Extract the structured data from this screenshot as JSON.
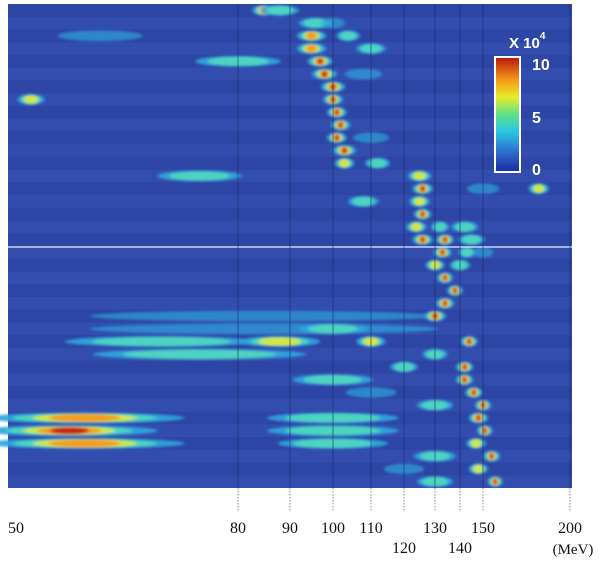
{
  "chart_data": {
    "type": "heatmap",
    "x_axis_ticks": [
      50,
      80,
      90,
      100,
      110,
      120,
      130,
      140,
      150,
      200
    ],
    "x_unit": "(MeV)",
    "colorbar": {
      "multiplier": "X 10",
      "exponent": "4",
      "ticks": [
        "10",
        "5",
        "0"
      ],
      "tick_values": [
        10,
        5,
        0
      ],
      "range": [
        0,
        11
      ],
      "colormap": "jet"
    },
    "rows": [
      {
        "segments": [
          [
            85,
            3,
            1.0
          ],
          [
            88,
            6,
            0.35
          ]
        ]
      },
      {
        "segments": [
          [
            96,
            6,
            0.3
          ],
          [
            100,
            4,
            0.25
          ]
        ]
      },
      {
        "segments": [
          [
            62,
            10,
            0.25
          ],
          [
            95,
            5,
            0.7
          ],
          [
            104,
            4,
            0.4
          ]
        ]
      },
      {
        "segments": [
          [
            95,
            5,
            0.75
          ],
          [
            110,
            6,
            0.3
          ]
        ]
      },
      {
        "segments": [
          [
            80,
            12,
            0.3
          ],
          [
            97,
            4,
            0.95
          ]
        ]
      },
      {
        "segments": [
          [
            98,
            4,
            1.0
          ],
          [
            108,
            8,
            0.25
          ]
        ]
      },
      {
        "segments": [
          [
            100,
            4,
            0.8
          ]
        ]
      },
      {
        "segments": [
          [
            53,
            2.5,
            0.55
          ],
          [
            100,
            3,
            0.85
          ]
        ]
      },
      {
        "segments": [
          [
            101,
            3,
            1.0
          ]
        ]
      },
      {
        "segments": [
          [
            102,
            3,
            0.8
          ]
        ]
      },
      {
        "segments": [
          [
            101,
            3,
            0.9
          ],
          [
            110,
            8,
            0.25
          ]
        ]
      },
      {
        "segments": [
          [
            103,
            4,
            1.0
          ]
        ]
      },
      {
        "segments": [
          [
            103,
            3,
            0.6
          ],
          [
            112,
            5,
            0.35
          ]
        ]
      },
      {
        "segments": [
          [
            75,
            10,
            0.3
          ],
          [
            125,
            5,
            0.55
          ]
        ]
      },
      {
        "segments": [
          [
            126,
            4,
            1.0
          ],
          [
            182,
            7,
            0.55
          ],
          [
            150,
            12,
            0.2
          ]
        ]
      },
      {
        "segments": [
          [
            125,
            4,
            0.6
          ],
          [
            108,
            6,
            0.3
          ]
        ]
      },
      {
        "segments": [
          [
            126,
            3,
            1.0
          ]
        ]
      },
      {
        "segments": [
          [
            124,
            4,
            0.55
          ],
          [
            132,
            4,
            0.45
          ],
          [
            142,
            8,
            0.3
          ]
        ]
      },
      {
        "segments": [
          [
            126,
            4,
            1.0
          ],
          [
            134,
            4,
            0.85
          ],
          [
            145,
            8,
            0.4
          ]
        ]
      },
      {
        "segments": [
          [
            133,
            4,
            1.0
          ],
          [
            143,
            4,
            0.45
          ],
          [
            150,
            6,
            0.25
          ]
        ]
      },
      {
        "segments": [
          [
            130,
            4,
            0.5
          ],
          [
            140,
            5,
            0.3
          ]
        ]
      },
      {
        "segments": [
          [
            134,
            3,
            1.0
          ]
        ]
      },
      {
        "segments": [
          [
            138,
            3,
            1.0
          ]
        ]
      },
      {
        "segments": [
          [
            134,
            4,
            1.0
          ]
        ]
      },
      {
        "segments": [
          [
            85,
            60,
            0.2
          ],
          [
            130,
            5,
            0.85
          ]
        ]
      },
      {
        "segments": [
          [
            85,
            60,
            0.22
          ],
          [
            100,
            15,
            0.3
          ]
        ]
      },
      {
        "segments": [
          [
            70,
            25,
            0.45
          ],
          [
            88,
            15,
            0.5
          ],
          [
            144,
            4,
            1.0
          ],
          [
            110,
            6,
            0.5
          ]
        ]
      },
      {
        "segments": [
          [
            75,
            30,
            0.3
          ],
          [
            130,
            6,
            0.3
          ]
        ]
      },
      {
        "segments": [
          [
            142,
            4,
            0.95
          ],
          [
            120,
            6,
            0.3
          ]
        ]
      },
      {
        "segments": [
          [
            100,
            18,
            0.3
          ],
          [
            142,
            4,
            0.8
          ]
        ]
      },
      {
        "segments": [
          [
            110,
            12,
            0.25
          ],
          [
            146,
            4,
            1.0
          ]
        ]
      },
      {
        "segments": [
          [
            150,
            4,
            0.85
          ],
          [
            130,
            10,
            0.3
          ]
        ]
      },
      {
        "segments": [
          [
            60,
            30,
            0.7
          ],
          [
            100,
            30,
            0.3
          ],
          [
            148,
            5,
            0.85
          ]
        ]
      },
      {
        "segments": [
          [
            58,
            28,
            0.9
          ],
          [
            100,
            30,
            0.35
          ],
          [
            151,
            4,
            1.0
          ]
        ]
      },
      {
        "segments": [
          [
            60,
            30,
            0.7
          ],
          [
            100,
            25,
            0.3
          ],
          [
            147,
            5,
            0.6
          ]
        ]
      },
      {
        "segments": [
          [
            130,
            12,
            0.3
          ],
          [
            155,
            5,
            0.95
          ]
        ]
      },
      {
        "segments": [
          [
            120,
            10,
            0.25
          ],
          [
            148,
            5,
            0.55
          ]
        ]
      },
      {
        "segments": [
          [
            157,
            4,
            0.9
          ],
          [
            130,
            10,
            0.3
          ]
        ]
      }
    ]
  }
}
